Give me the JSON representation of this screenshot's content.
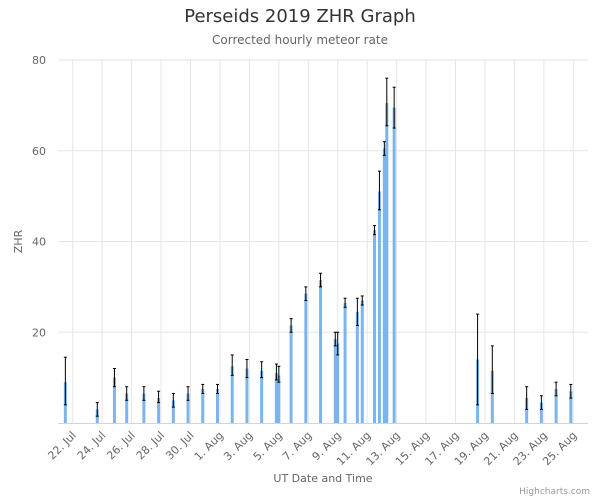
{
  "chart_data": {
    "type": "bar",
    "title": "Perseids 2019 ZHR Graph",
    "subtitle": "Corrected hourly meteor rate",
    "xlabel": "UT Date and Time",
    "ylabel": "ZHR",
    "ylim": [
      0,
      80
    ],
    "y_ticks": [
      "0",
      "20",
      "40",
      "60",
      "80"
    ],
    "x_start_date": "2019-07-21",
    "x_tick_labels": [
      "22. Jul",
      "24. Jul",
      "26. Jul",
      "28. Jul",
      "30. Jul",
      "1. Aug",
      "3. Aug",
      "5. Aug",
      "7. Aug",
      "9. Aug",
      "11. Aug",
      "13. Aug",
      "15. Aug",
      "17. Aug",
      "19. Aug",
      "21. Aug",
      "23. Aug",
      "25. Aug"
    ],
    "grid": "vertical lines at x ticks; horizontal lines at y ticks",
    "colors": {
      "bar": "#7cb5ec",
      "error_bar": "#000000",
      "grid": "#e6e6e6",
      "axis": "#ccd6eb"
    },
    "series": [
      {
        "points": [
          {
            "date": "2019-07-21 12:00",
            "zhr": 9.0,
            "low": 4.0,
            "high": 14.5
          },
          {
            "date": "2019-07-23 16:00",
            "zhr": 3.0,
            "low": 1.5,
            "high": 4.5
          },
          {
            "date": "2019-07-24 20:00",
            "zhr": 10.0,
            "low": 8.0,
            "high": 12.0
          },
          {
            "date": "2019-07-25 16:00",
            "zhr": 6.5,
            "low": 5.0,
            "high": 8.0
          },
          {
            "date": "2019-07-26 20:00",
            "zhr": 6.5,
            "low": 5.0,
            "high": 8.0
          },
          {
            "date": "2019-07-27 20:00",
            "zhr": 5.5,
            "low": 4.5,
            "high": 7.0
          },
          {
            "date": "2019-07-28 20:00",
            "zhr": 5.0,
            "low": 3.5,
            "high": 6.5
          },
          {
            "date": "2019-07-29 20:00",
            "zhr": 6.5,
            "low": 5.0,
            "high": 8.0
          },
          {
            "date": "2019-07-30 20:00",
            "zhr": 7.5,
            "low": 6.5,
            "high": 8.5
          },
          {
            "date": "2019-07-31 20:00",
            "zhr": 7.5,
            "low": 6.5,
            "high": 8.5
          },
          {
            "date": "2019-08-01 20:00",
            "zhr": 12.5,
            "low": 10.5,
            "high": 15.0
          },
          {
            "date": "2019-08-02 20:00",
            "zhr": 12.0,
            "low": 10.0,
            "high": 14.0
          },
          {
            "date": "2019-08-03 20:00",
            "zhr": 11.5,
            "low": 10.0,
            "high": 13.5
          },
          {
            "date": "2019-08-04 20:00",
            "zhr": 11.0,
            "low": 9.5,
            "high": 13.0
          },
          {
            "date": "2019-08-05 00:00",
            "zhr": 10.5,
            "low": 9.0,
            "high": 12.5
          },
          {
            "date": "2019-08-05 20:00",
            "zhr": 21.5,
            "low": 20.0,
            "high": 23.0
          },
          {
            "date": "2019-08-06 20:00",
            "zhr": 28.5,
            "low": 27.0,
            "high": 30.0
          },
          {
            "date": "2019-08-07 20:00",
            "zhr": 31.5,
            "low": 30.0,
            "high": 33.0
          },
          {
            "date": "2019-08-08 20:00",
            "zhr": 18.5,
            "low": 17.0,
            "high": 20.0
          },
          {
            "date": "2019-08-09 00:00",
            "zhr": 17.5,
            "low": 15.0,
            "high": 20.0
          },
          {
            "date": "2019-08-09 12:00",
            "zhr": 26.5,
            "low": 25.5,
            "high": 27.5
          },
          {
            "date": "2019-08-10 08:00",
            "zhr": 24.5,
            "low": 21.5,
            "high": 27.5
          },
          {
            "date": "2019-08-10 16:00",
            "zhr": 27.0,
            "low": 26.0,
            "high": 28.0
          },
          {
            "date": "2019-08-11 12:00",
            "zhr": 42.5,
            "low": 41.5,
            "high": 43.5
          },
          {
            "date": "2019-08-11 20:00",
            "zhr": 51.0,
            "low": 47.0,
            "high": 55.5
          },
          {
            "date": "2019-08-12 04:00",
            "zhr": 60.5,
            "low": 59.0,
            "high": 62.0
          },
          {
            "date": "2019-08-12 08:00",
            "zhr": 70.5,
            "low": 65.5,
            "high": 76.0
          },
          {
            "date": "2019-08-12 20:00",
            "zhr": 69.5,
            "low": 65.0,
            "high": 74.0
          },
          {
            "date": "2019-08-18 12:00",
            "zhr": 14.0,
            "low": 4.0,
            "high": 24.0
          },
          {
            "date": "2019-08-19 12:00",
            "zhr": 11.5,
            "low": 6.5,
            "high": 17.0
          },
          {
            "date": "2019-08-21 20:00",
            "zhr": 5.5,
            "low": 3.0,
            "high": 8.0
          },
          {
            "date": "2019-08-22 20:00",
            "zhr": 4.5,
            "low": 3.0,
            "high": 6.0
          },
          {
            "date": "2019-08-23 20:00",
            "zhr": 7.5,
            "low": 6.0,
            "high": 9.0
          },
          {
            "date": "2019-08-24 20:00",
            "zhr": 7.0,
            "low": 5.5,
            "high": 8.5
          }
        ]
      }
    ]
  },
  "credits": "Highcharts.com"
}
